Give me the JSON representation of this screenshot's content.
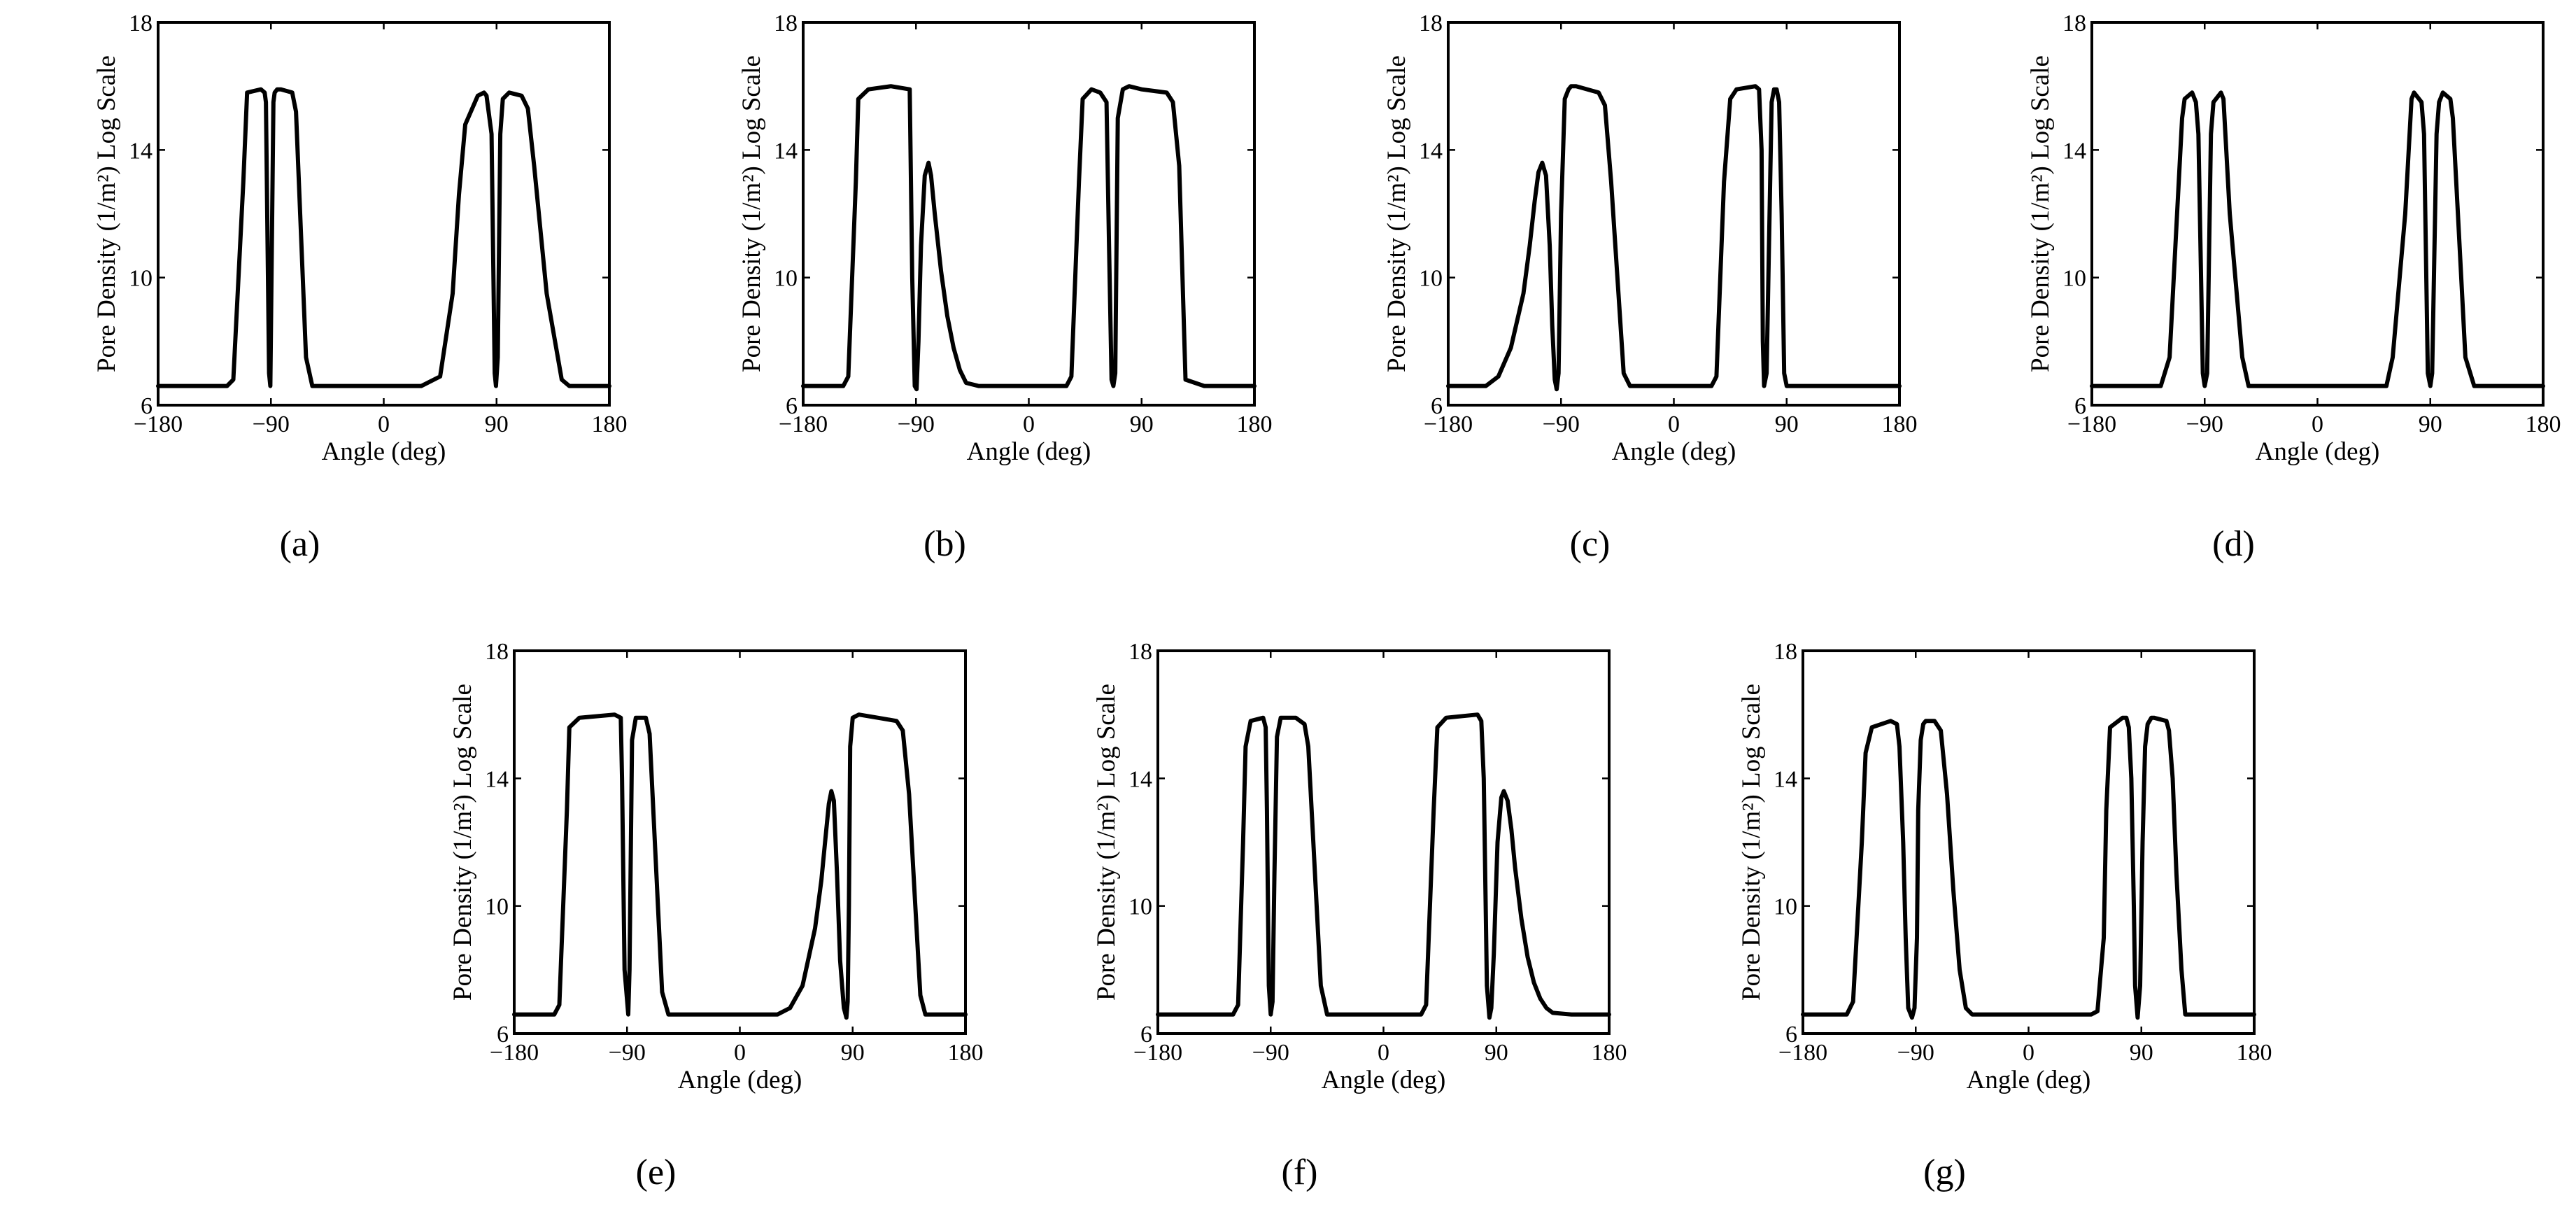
{
  "chart_data": [
    {
      "type": "line",
      "panel": "(a)",
      "xlabel": "Angle (deg)",
      "ylabel": "Pore Density (1/m²) Log Scale",
      "xlim": [
        -180,
        180
      ],
      "ylim": [
        6,
        18
      ],
      "xticks": [
        "−180",
        "−90",
        "0",
        "90",
        "180"
      ],
      "yticks": [
        "6",
        "10",
        "14",
        "18"
      ],
      "series": [
        {
          "name": "pore density",
          "x": [
            -180,
            -125,
            -120,
            -112,
            -109,
            -98,
            -95,
            -94,
            -91.5,
            -90.5,
            -88,
            -87,
            -85,
            -82,
            -73,
            -70,
            -62,
            -57,
            -50,
            30,
            45,
            55,
            60,
            65,
            75,
            80,
            82,
            86,
            88.5,
            89.5,
            91,
            93,
            95,
            100,
            110,
            115,
            120,
            130,
            142,
            148,
            180
          ],
          "y": [
            6.6,
            6.6,
            6.8,
            13,
            15.8,
            15.9,
            15.8,
            15.5,
            7,
            6.6,
            15.5,
            15.8,
            15.9,
            15.9,
            15.8,
            15.2,
            7.5,
            6.6,
            6.6,
            6.6,
            6.9,
            9.5,
            12.6,
            14.8,
            15.7,
            15.8,
            15.7,
            14.5,
            7,
            6.6,
            7.5,
            14.5,
            15.6,
            15.8,
            15.7,
            15.3,
            13.5,
            9.5,
            6.8,
            6.6,
            6.6
          ]
        }
      ]
    },
    {
      "type": "line",
      "panel": "(b)",
      "xlabel": "Angle (deg)",
      "ylabel": "Pore Density (1/m²) Log Scale",
      "xlim": [
        -180,
        180
      ],
      "ylim": [
        6,
        18
      ],
      "xticks": [
        "−180",
        "−90",
        "0",
        "90",
        "180"
      ],
      "yticks": [
        "6",
        "10",
        "14",
        "18"
      ],
      "series": [
        {
          "name": "pore density",
          "x": [
            -180,
            -148,
            -144,
            -138,
            -136,
            -128,
            -110,
            -95,
            -93,
            -91,
            -89.5,
            -88,
            -86,
            -83,
            -80,
            -78,
            -75,
            -70,
            -65,
            -60,
            -55,
            -50,
            -40,
            30,
            34,
            40,
            43,
            50,
            57,
            62,
            64,
            66,
            67.5,
            69,
            71,
            75,
            80,
            90,
            110,
            115,
            120,
            125,
            140,
            180
          ],
          "y": [
            6.6,
            6.6,
            6.9,
            13,
            15.6,
            15.9,
            16,
            15.9,
            10,
            6.6,
            6.5,
            8,
            11,
            13.2,
            13.6,
            13.2,
            12,
            10.2,
            8.8,
            7.8,
            7.1,
            6.7,
            6.6,
            6.6,
            6.9,
            13,
            15.6,
            15.9,
            15.8,
            15.5,
            11,
            6.8,
            6.6,
            7,
            15,
            15.9,
            16,
            15.9,
            15.8,
            15.5,
            13.5,
            6.8,
            6.6,
            6.6
          ]
        }
      ]
    },
    {
      "type": "line",
      "panel": "(c)",
      "xlabel": "Angle (deg)",
      "ylabel": "Pore Density (1/m²) Log Scale",
      "xlim": [
        -180,
        180
      ],
      "ylim": [
        6,
        18
      ],
      "xticks": [
        "−180",
        "−90",
        "0",
        "90",
        "180"
      ],
      "yticks": [
        "6",
        "10",
        "14",
        "18"
      ],
      "series": [
        {
          "name": "pore density",
          "x": [
            -180,
            -150,
            -140,
            -130,
            -120,
            -115,
            -111,
            -108,
            -105,
            -102,
            -99,
            -97,
            -95,
            -93.5,
            -92,
            -90,
            -87,
            -84,
            -82,
            -78,
            -60,
            -55,
            -50,
            -40,
            -35,
            30,
            34,
            40,
            45,
            50,
            65,
            68,
            70,
            71,
            72,
            74,
            78,
            80,
            82,
            84,
            86,
            88,
            90,
            180
          ],
          "y": [
            6.6,
            6.6,
            6.9,
            7.8,
            9.5,
            11,
            12.4,
            13.3,
            13.6,
            13.2,
            11,
            8.5,
            6.8,
            6.5,
            7,
            12,
            15.6,
            15.9,
            16,
            16,
            15.8,
            15.4,
            13,
            7,
            6.6,
            6.6,
            6.9,
            13,
            15.6,
            15.9,
            16,
            15.9,
            14,
            8,
            6.6,
            7,
            15.5,
            15.9,
            15.9,
            15.5,
            12,
            7,
            6.6,
            6.6
          ]
        }
      ]
    },
    {
      "type": "line",
      "panel": "(d)",
      "xlabel": "Angle (deg)",
      "ylabel": "Pore Density (1/m²) Log Scale",
      "xlim": [
        -180,
        180
      ],
      "ylim": [
        6,
        18
      ],
      "xticks": [
        "−180",
        "−90",
        "0",
        "90",
        "180"
      ],
      "yticks": [
        "6",
        "10",
        "14",
        "18"
      ],
      "series": [
        {
          "name": "pore density",
          "x": [
            -180,
            -125,
            -118,
            -112,
            -108,
            -106,
            -100,
            -97,
            -95,
            -91.5,
            -90,
            -88,
            -85,
            -83,
            -77,
            -75,
            -70,
            -60,
            -55,
            55,
            60,
            70,
            75,
            77,
            83,
            85,
            88,
            90,
            91.5,
            95,
            97,
            100,
            106,
            108,
            112,
            118,
            125,
            180
          ],
          "y": [
            6.6,
            6.6,
            7.5,
            12,
            15,
            15.6,
            15.8,
            15.5,
            14.5,
            7,
            6.6,
            7,
            14.5,
            15.5,
            15.8,
            15.6,
            12,
            7.5,
            6.6,
            6.6,
            7.5,
            12,
            15.6,
            15.8,
            15.5,
            14.5,
            7,
            6.6,
            7,
            14.5,
            15.5,
            15.8,
            15.6,
            15,
            12,
            7.5,
            6.6,
            6.6
          ]
        }
      ]
    },
    {
      "type": "line",
      "panel": "(e)",
      "xlabel": "Angle (deg)",
      "ylabel": "Pore Density (1/m²) Log Scale",
      "xlim": [
        -180,
        180
      ],
      "ylim": [
        6,
        18
      ],
      "xticks": [
        "−180",
        "−90",
        "0",
        "90",
        "180"
      ],
      "yticks": [
        "6",
        "10",
        "14",
        "18"
      ],
      "series": [
        {
          "name": "pore density",
          "x": [
            -180,
            -148,
            -144,
            -138,
            -136,
            -128,
            -100,
            -95,
            -94,
            -92,
            -89,
            -88,
            -86,
            -83,
            -75,
            -72,
            -62,
            -57,
            -50,
            30,
            40,
            50,
            60,
            65,
            68,
            71,
            73,
            75,
            77.5,
            80,
            83,
            85,
            86,
            87,
            88,
            90,
            95,
            110,
            125,
            130,
            135,
            140,
            144,
            148,
            180
          ],
          "y": [
            6.6,
            6.6,
            6.9,
            13,
            15.6,
            15.9,
            16,
            15.9,
            14,
            8,
            6.6,
            8,
            15.2,
            15.9,
            15.9,
            15.4,
            7.3,
            6.6,
            6.6,
            6.6,
            6.8,
            7.5,
            9.3,
            10.8,
            12,
            13.2,
            13.6,
            13.3,
            11,
            8.3,
            6.8,
            6.5,
            7,
            10,
            15,
            15.9,
            16,
            15.9,
            15.8,
            15.5,
            13.5,
            10,
            7.2,
            6.6,
            6.6
          ]
        }
      ]
    },
    {
      "type": "line",
      "panel": "(f)",
      "xlabel": "Angle (deg)",
      "ylabel": "Pore Density (1/m²) Log Scale",
      "xlim": [
        -180,
        180
      ],
      "ylim": [
        6,
        18
      ],
      "xticks": [
        "−180",
        "−90",
        "0",
        "90",
        "180"
      ],
      "yticks": [
        "6",
        "10",
        "14",
        "18"
      ],
      "series": [
        {
          "name": "pore density",
          "x": [
            -180,
            -120,
            -116,
            -112,
            -110,
            -106,
            -96,
            -94,
            -93,
            -91.5,
            -90,
            -88.5,
            -87,
            -85,
            -82,
            -70,
            -63,
            -60,
            -56,
            -50,
            -45,
            30,
            34,
            40,
            43,
            50,
            75,
            78,
            80,
            82.5,
            84.5,
            86,
            88,
            91,
            94,
            96,
            99,
            102,
            105,
            110,
            115,
            120,
            125,
            130,
            135,
            150,
            180
          ],
          "y": [
            6.6,
            6.6,
            6.9,
            12,
            15,
            15.8,
            15.9,
            15.6,
            13,
            7.5,
            6.6,
            7,
            11,
            15.3,
            15.9,
            15.9,
            15.7,
            15,
            12,
            7.5,
            6.6,
            6.6,
            6.9,
            13,
            15.6,
            15.9,
            16,
            15.8,
            14,
            7.5,
            6.5,
            6.8,
            8.5,
            12,
            13.4,
            13.6,
            13.3,
            12.4,
            11.2,
            9.6,
            8.4,
            7.6,
            7.1,
            6.8,
            6.65,
            6.6,
            6.6
          ]
        }
      ]
    },
    {
      "type": "line",
      "panel": "(g)",
      "xlabel": "Angle (deg)",
      "ylabel": "Pore Density (1/m²) Log Scale",
      "xlim": [
        -180,
        180
      ],
      "ylim": [
        6,
        18
      ],
      "xticks": [
        "−180",
        "−90",
        "0",
        "90",
        "180"
      ],
      "yticks": [
        "6",
        "10",
        "14",
        "18"
      ],
      "series": [
        {
          "name": "pore density",
          "x": [
            -180,
            -145,
            -140,
            -133,
            -130,
            -125,
            -110,
            -105,
            -103,
            -100,
            -98,
            -96,
            -93,
            -91,
            -89,
            -88,
            -86,
            -84,
            -82,
            -75,
            -70,
            -65,
            -60,
            -55,
            -50,
            -45,
            50,
            55,
            60,
            62,
            65,
            75,
            78,
            80,
            82,
            84,
            85,
            87,
            89,
            91,
            93,
            95,
            98,
            100,
            110,
            112,
            115,
            118,
            122,
            125,
            180
          ],
          "y": [
            6.6,
            6.6,
            7,
            12,
            14.8,
            15.6,
            15.8,
            15.7,
            15,
            12,
            9,
            6.8,
            6.5,
            6.8,
            9,
            13,
            15.2,
            15.7,
            15.8,
            15.8,
            15.5,
            13.5,
            10.5,
            8,
            6.8,
            6.6,
            6.6,
            6.7,
            9,
            13,
            15.6,
            15.9,
            15.9,
            15.6,
            14,
            10,
            7.5,
            6.5,
            7.5,
            12,
            15,
            15.7,
            15.9,
            15.9,
            15.8,
            15.5,
            14,
            11,
            8,
            6.6,
            6.6
          ]
        }
      ]
    }
  ]
}
